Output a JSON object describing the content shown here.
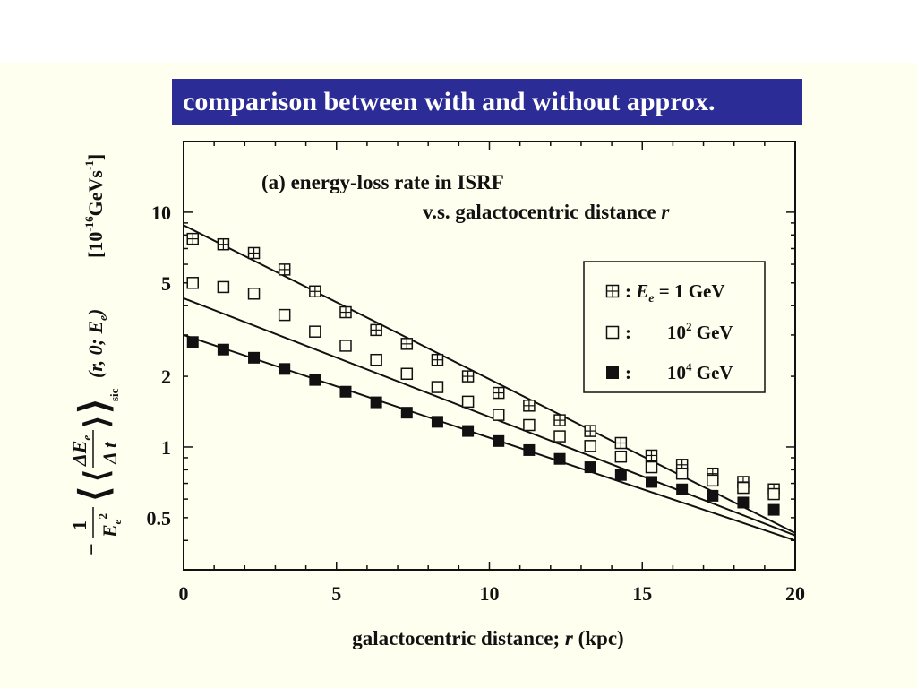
{
  "slide": {
    "banner_title": "comparison between with and without approx."
  },
  "colors": {
    "banner_bg": "#2c2c96",
    "banner_text": "#ffffff",
    "slide_bg": "#fffff0",
    "ink": "#111111"
  },
  "chart_data": {
    "type": "scatter",
    "title_line1": "(a) energy-loss rate in ISRF",
    "title_line2": "v.s. galactocentric distance",
    "title_line2_var": "r",
    "xlabel": "galactocentric distance;",
    "xlabel_var": "r",
    "xlabel_unit": "(kpc)",
    "ylabel_prefix": "−",
    "ylabel_numerator": "1",
    "ylabel_denominator": "E",
    "ylabel_denominator_sub": "e",
    "ylabel_denominator_sup": "2",
    "ylabel_inner_num": "ΔE",
    "ylabel_inner_num_sub": "e",
    "ylabel_inner_den": "Δ t",
    "ylabel_args": "(r, 0; E",
    "ylabel_args_sub": "e",
    "ylabel_args_close": ")",
    "ylabel_bracket_sub": "sic",
    "ylabel_unit": "[10",
    "ylabel_unit_sup": "-16",
    "ylabel_unit_body": "GeVs",
    "ylabel_unit_sup2": "-1",
    "ylabel_unit_close": "]",
    "xlim": [
      0,
      20
    ],
    "ylim": [
      0.3,
      20
    ],
    "yscale": "log",
    "x_ticks": [
      "0",
      "5",
      "10",
      "15",
      "20"
    ],
    "x_tick_values": [
      0,
      5,
      10,
      15,
      20
    ],
    "y_ticks": [
      "0.5",
      "1",
      "2",
      "5",
      "10"
    ],
    "y_tick_values": [
      0.5,
      1,
      2,
      5,
      10
    ],
    "legend_position": "right-middle",
    "grid": false,
    "series": [
      {
        "legend_prefix": ": E",
        "legend_sub": "e",
        "legend_text": " = 1 GeV",
        "marker": "boxed-plus",
        "x": [
          0.3,
          1.3,
          2.3,
          3.3,
          4.3,
          5.3,
          6.3,
          7.3,
          8.3,
          9.3,
          10.3,
          11.3,
          12.3,
          13.3,
          14.3,
          15.3,
          16.3,
          17.3,
          18.3,
          19.3
        ],
        "y": [
          7.7,
          7.3,
          6.7,
          5.7,
          4.6,
          3.75,
          3.15,
          2.75,
          2.35,
          2.0,
          1.7,
          1.5,
          1.3,
          1.17,
          1.04,
          0.92,
          0.84,
          0.77,
          0.71,
          0.66
        ],
        "fit": {
          "y0": 8.8,
          "y20": 0.43
        }
      },
      {
        "legend_prefix": ":",
        "legend_value": "10",
        "legend_sup": "2",
        "legend_unit": " GeV",
        "marker": "open-square",
        "x": [
          0.3,
          1.3,
          2.3,
          3.3,
          4.3,
          5.3,
          6.3,
          7.3,
          8.3,
          9.3,
          10.3,
          11.3,
          12.3,
          13.3,
          14.3,
          15.3,
          16.3,
          17.3,
          18.3,
          19.3
        ],
        "y": [
          5.0,
          4.8,
          4.5,
          3.65,
          3.1,
          2.7,
          2.35,
          2.05,
          1.8,
          1.56,
          1.37,
          1.24,
          1.11,
          1.01,
          0.91,
          0.82,
          0.77,
          0.72,
          0.67,
          0.63
        ],
        "fit": {
          "y0": 4.3,
          "y20": 0.42
        }
      },
      {
        "legend_prefix": ":",
        "legend_value": "10",
        "legend_sup": "4",
        "legend_unit": " GeV",
        "marker": "filled-square",
        "x": [
          0.3,
          1.3,
          2.3,
          3.3,
          4.3,
          5.3,
          6.3,
          7.3,
          8.3,
          9.3,
          10.3,
          11.3,
          12.3,
          13.3,
          14.3,
          15.3,
          16.3,
          17.3,
          18.3,
          19.3
        ],
        "y": [
          2.8,
          2.6,
          2.4,
          2.15,
          1.93,
          1.72,
          1.55,
          1.4,
          1.28,
          1.17,
          1.06,
          0.97,
          0.89,
          0.82,
          0.76,
          0.71,
          0.66,
          0.62,
          0.58,
          0.54
        ],
        "fit": {
          "y0": 3.0,
          "y20": 0.4
        }
      }
    ]
  }
}
